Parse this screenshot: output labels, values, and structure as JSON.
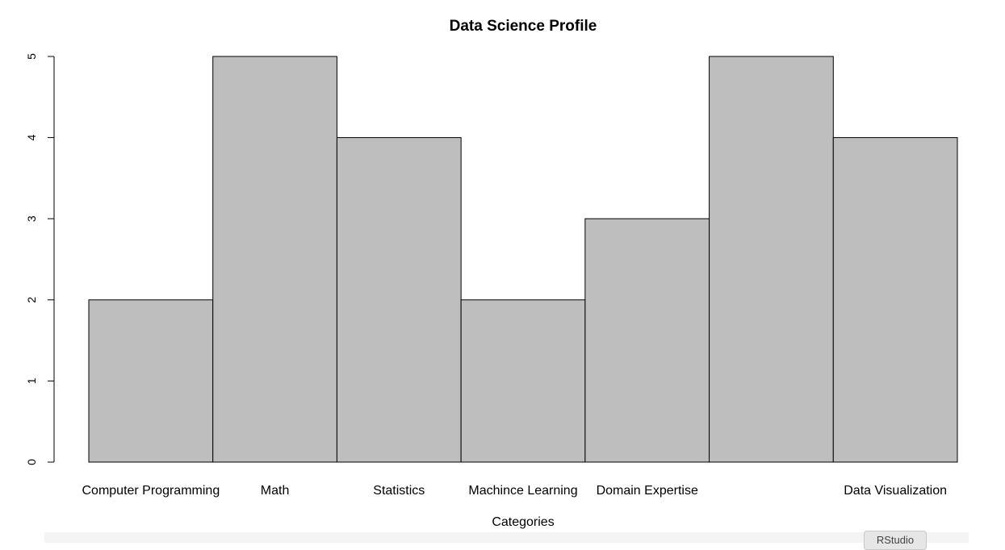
{
  "chart_data": {
    "type": "bar",
    "title": "Data Science Profile",
    "xlabel": "Categories",
    "ylabel": "",
    "categories": [
      "Computer Programming",
      "Math",
      "Statistics",
      "Machince Learning",
      "Domain Expertise",
      "",
      "Data Visualization"
    ],
    "values": [
      2,
      5,
      4,
      2,
      3,
      5,
      4
    ],
    "ylim": [
      0,
      5
    ],
    "yticks": [
      "0",
      "1",
      "2",
      "3",
      "4",
      "5"
    ],
    "grid": false,
    "colors": {
      "bar_fill": "#bebebe",
      "bar_stroke": "#000000"
    }
  },
  "badge": {
    "label": "RStudio"
  }
}
